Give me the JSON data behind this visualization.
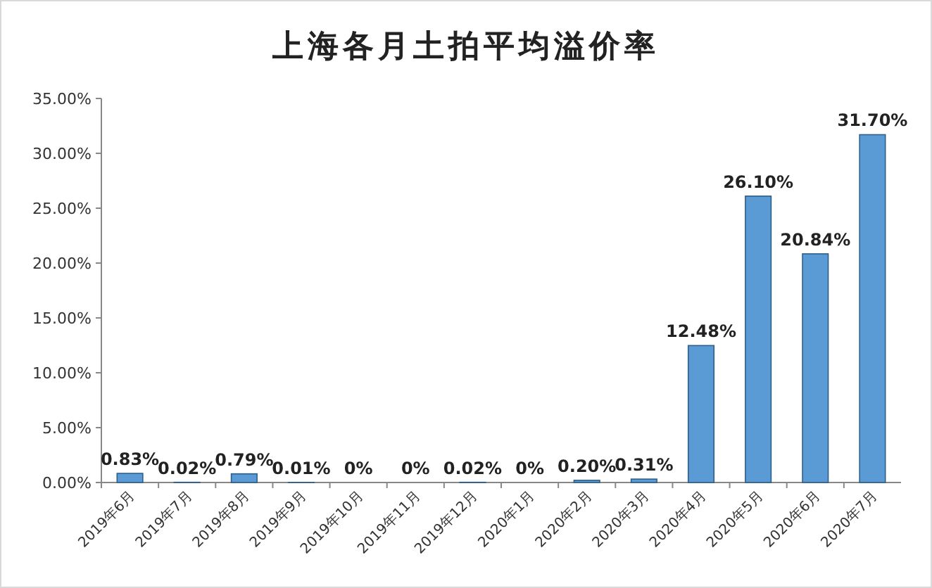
{
  "chart_data": {
    "type": "bar",
    "title": "上海各月土拍平均溢价率",
    "categories": [
      "2019年6月",
      "2019年7月",
      "2019年8月",
      "2019年9月",
      "2019年10月",
      "2019年11月",
      "2019年12月",
      "2020年1月",
      "2020年2月",
      "2020年3月",
      "2020年4月",
      "2020年5月",
      "2020年6月",
      "2020年7月"
    ],
    "values": [
      0.83,
      0.02,
      0.79,
      0.01,
      0,
      0,
      0.02,
      0,
      0.2,
      0.31,
      12.48,
      26.1,
      20.84,
      31.7
    ],
    "value_labels": [
      "0.83%",
      "0.02%",
      "0.79%",
      "0.01%",
      "0%",
      "0%",
      "0.02%",
      "0%",
      "0.20%",
      "0.31%",
      "12.48%",
      "26.10%",
      "20.84%",
      "31.70%"
    ],
    "color": "#5b9bd5",
    "ylim": [
      0,
      35
    ],
    "yticks": [
      {
        "value": 0,
        "label": "0.00%"
      },
      {
        "value": 5,
        "label": "5.00%"
      },
      {
        "value": 10,
        "label": "10.00%"
      },
      {
        "value": 15,
        "label": "15.00%"
      },
      {
        "value": 20,
        "label": "20.00%"
      },
      {
        "value": 25,
        "label": "25.00%"
      },
      {
        "value": 30,
        "label": "30.00%"
      },
      {
        "value": 35,
        "label": "35.00%"
      }
    ]
  }
}
